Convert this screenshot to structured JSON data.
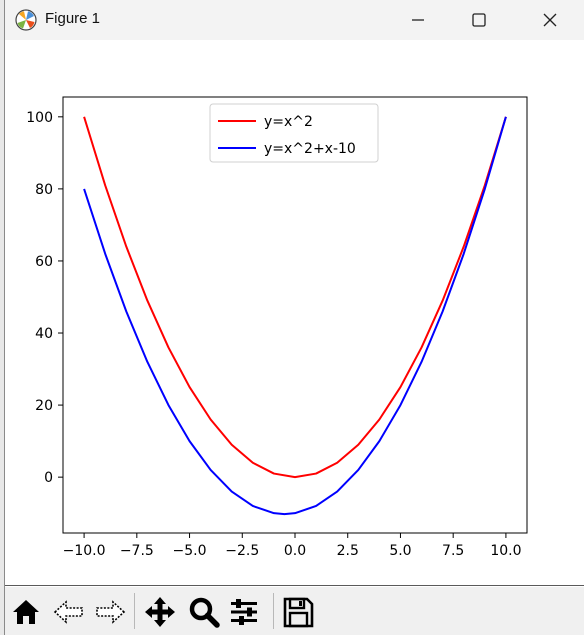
{
  "window": {
    "title": "Figure 1",
    "icon": "matplotlib-logo-icon",
    "controls": [
      "minimize-icon",
      "maximize-icon",
      "close-icon"
    ]
  },
  "toolbar": {
    "tools": [
      {
        "name": "home",
        "icon": "home-icon"
      },
      {
        "name": "back",
        "icon": "back-arrow-icon"
      },
      {
        "name": "forward",
        "icon": "forward-arrow-icon"
      },
      {
        "name": "pan",
        "icon": "move-icon"
      },
      {
        "name": "zoom",
        "icon": "magnifier-icon"
      },
      {
        "name": "configure",
        "icon": "sliders-icon"
      },
      {
        "name": "save",
        "icon": "floppy-disk-icon"
      }
    ]
  },
  "chart_data": {
    "type": "line",
    "title": "",
    "xlabel": "",
    "ylabel": "",
    "xlim": [
      -11,
      11
    ],
    "ylim": [
      -15.5,
      105.5
    ],
    "xticks": [
      -10.0,
      -7.5,
      -5.0,
      -2.5,
      0.0,
      2.5,
      5.0,
      7.5,
      10.0
    ],
    "xtick_labels": [
      "−10.0",
      "−7.5",
      "−5.0",
      "−2.5",
      "0.0",
      "2.5",
      "5.0",
      "7.5",
      "10.0"
    ],
    "yticks": [
      0,
      20,
      40,
      60,
      80,
      100
    ],
    "ytick_labels": [
      "0",
      "20",
      "40",
      "60",
      "80",
      "100"
    ],
    "grid": false,
    "legend_position": "upper center",
    "series": [
      {
        "name": "y=x^2",
        "color": "#ff0000",
        "x": [
          -10,
          -9,
          -8,
          -7,
          -6,
          -5,
          -4,
          -3,
          -2,
          -1,
          0,
          1,
          2,
          3,
          4,
          5,
          6,
          7,
          8,
          9,
          10
        ],
        "y": [
          100,
          81,
          64,
          49,
          36,
          25,
          16,
          9,
          4,
          1,
          0,
          1,
          4,
          9,
          16,
          25,
          36,
          49,
          64,
          81,
          100
        ]
      },
      {
        "name": "y=x^2+x-10",
        "color": "#0000ff",
        "x": [
          -10,
          -9,
          -8,
          -7,
          -6,
          -5,
          -4,
          -3,
          -2,
          -1,
          -0.5,
          0,
          1,
          2,
          3,
          4,
          5,
          6,
          7,
          8,
          9,
          10
        ],
        "y": [
          80,
          62,
          46,
          32,
          20,
          10,
          2,
          -4,
          -8,
          -10,
          -10.25,
          -10,
          -8,
          -4,
          2,
          10,
          20,
          32,
          46,
          62,
          80,
          100
        ]
      }
    ]
  }
}
